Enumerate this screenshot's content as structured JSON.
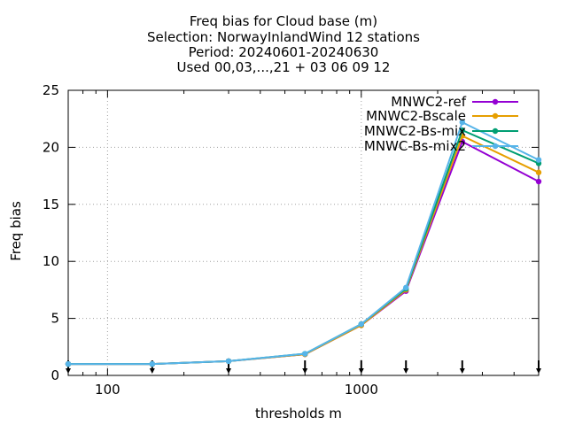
{
  "chart_data": {
    "type": "line",
    "title_lines": [
      "Freq bias  for Cloud base (m)",
      "Selection: NorwayInlandWind     12 stations",
      "Period: 20240601-20240630",
      "Used 00,03,...,21 + 03 06 09 12"
    ],
    "xlabel": "thresholds m",
    "ylabel": "Freq bias",
    "xscale": "log",
    "xlim": [
      70,
      5000
    ],
    "ylim": [
      0,
      25
    ],
    "xticks": [
      100,
      1000
    ],
    "xtick_labels": [
      "100",
      "1000"
    ],
    "yticks": [
      0,
      5,
      10,
      15,
      20,
      25
    ],
    "ytick_labels": [
      "0",
      "5",
      "10",
      "15",
      "20",
      "25"
    ],
    "grid": true,
    "legend_position": "top-right",
    "x": [
      70,
      150,
      300,
      600,
      1000,
      1500,
      2500,
      5000
    ],
    "series": [
      {
        "name": "MNWC2-ref",
        "color": "#9400d3",
        "values": [
          1.0,
          1.0,
          1.25,
          1.85,
          4.4,
          7.4,
          20.5,
          17.0
        ]
      },
      {
        "name": "MNWC2-Bscale",
        "color": "#e69f00",
        "values": [
          1.0,
          1.0,
          1.25,
          1.85,
          4.4,
          7.5,
          21.0,
          17.8
        ]
      },
      {
        "name": "MNWC2-Bs-mix",
        "color": "#009e73",
        "values": [
          1.0,
          1.0,
          1.25,
          1.9,
          4.5,
          7.6,
          21.5,
          18.6
        ]
      },
      {
        "name": "MNWC-Bs-mix2",
        "color": "#56b4e9",
        "values": [
          1.0,
          1.0,
          1.25,
          1.9,
          4.5,
          7.7,
          22.2,
          18.9
        ]
      }
    ],
    "arrow_markers_x": [
      70,
      150,
      300,
      600,
      1000,
      1500,
      2500,
      5000
    ]
  }
}
